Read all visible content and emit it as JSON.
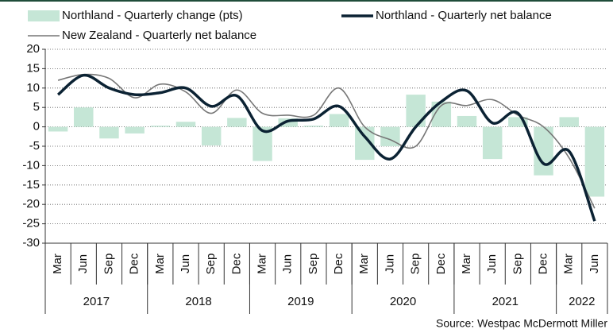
{
  "chart_data": {
    "type": "bar-line",
    "groups": [
      {
        "year": "2017",
        "quarters": [
          "Mar",
          "Jun",
          "Sep",
          "Dec"
        ]
      },
      {
        "year": "2018",
        "quarters": [
          "Mar",
          "Jun",
          "Sep",
          "Dec"
        ]
      },
      {
        "year": "2019",
        "quarters": [
          "Mar",
          "Jun",
          "Sep",
          "Dec"
        ]
      },
      {
        "year": "2020",
        "quarters": [
          "Mar",
          "Jun",
          "Sep",
          "Dec"
        ]
      },
      {
        "year": "2021",
        "quarters": [
          "Mar",
          "Jun",
          "Sep",
          "Dec"
        ]
      },
      {
        "year": "2022",
        "quarters": [
          "Mar",
          "Jun"
        ]
      }
    ],
    "series": [
      {
        "name": "Northland - Quarterly change (pts)",
        "type": "bar",
        "color": "#c5e6d6",
        "values": [
          -1.2,
          5,
          -3,
          -1.7,
          0.3,
          1.3,
          -4.8,
          2.3,
          -8.8,
          2.2,
          0.3,
          3.3,
          -8.5,
          -5,
          8.3,
          6.5,
          2.8,
          -8.3,
          2.5,
          -12.5,
          2.5,
          -18
        ]
      },
      {
        "name": "Northland - Quarterly net balance",
        "type": "line",
        "color": "#0b2233",
        "values": [
          8.3,
          13.3,
          10,
          8.3,
          8.8,
          10,
          5.3,
          8,
          -1,
          1.5,
          2,
          5.3,
          -2.5,
          -8.3,
          0,
          6.5,
          9.3,
          1,
          3.5,
          -9.5,
          -6.3,
          -24.3
        ]
      },
      {
        "name": "New Zealand - Quarterly net balance",
        "type": "line",
        "color": "#777777",
        "values": [
          12,
          13.5,
          12.5,
          7.5,
          11,
          9,
          3.5,
          9.5,
          3.5,
          3,
          3,
          10,
          0,
          -3.3,
          -5,
          5.5,
          5.5,
          7,
          3,
          0,
          -8,
          -21
        ]
      }
    ],
    "ylim": [
      -30,
      20
    ],
    "yticks": [
      -30,
      -25,
      -20,
      -15,
      -10,
      -5,
      0,
      5,
      10,
      15,
      20
    ],
    "grid": true,
    "source": "Source: Westpac McDermott Miller"
  }
}
